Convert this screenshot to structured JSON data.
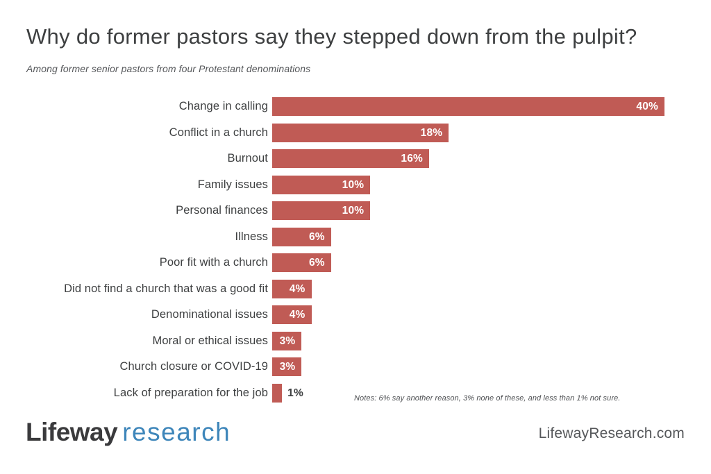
{
  "header": {
    "title": "Why do former pastors say they stepped down from the pulpit?",
    "subtitle": "Among former senior pastors from four Protestant denominations"
  },
  "chart_data": {
    "type": "bar",
    "orientation": "horizontal",
    "categories": [
      "Change in calling",
      "Conflict in a church",
      "Burnout",
      "Family issues",
      "Personal finances",
      "Illness",
      "Poor fit with a church",
      "Did not find a church that was a good fit",
      "Denominational issues",
      "Moral or ethical issues",
      "Church closure or COVID-19",
      "Lack of preparation for the job"
    ],
    "values": [
      40,
      18,
      16,
      10,
      10,
      6,
      6,
      4,
      4,
      3,
      3,
      1
    ],
    "value_suffix": "%",
    "xlim": [
      0,
      40
    ],
    "grid": false,
    "legend": false,
    "bar_color": "#C05B55",
    "value_label_inside_color": "#FFFFFF",
    "value_label_outside_color": "#3D3F40",
    "value_label_inside_min": 3
  },
  "notes": "Notes: 6% say another reason, 3% none of these, and less than 1% not sure.",
  "footer": {
    "logo_primary": "Lifeway",
    "logo_secondary": "research",
    "website": "LifewayResearch.com"
  },
  "colors": {
    "background": "#FFFFFF",
    "bar": "#C05B55",
    "title_text": "#3D3F40",
    "logo_primary": "#3A3A3C",
    "logo_secondary": "#3E86BA"
  }
}
